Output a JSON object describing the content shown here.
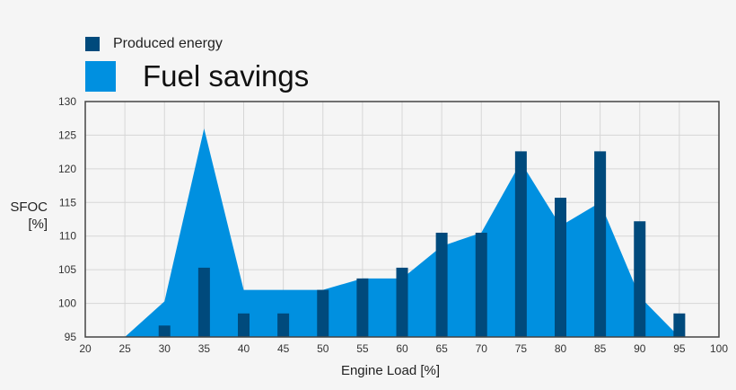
{
  "legend": {
    "produced_energy": {
      "label": "Produced energy",
      "color": "#004a7c"
    },
    "fuel_savings": {
      "label": "Fuel savings",
      "color": "#0090e0"
    }
  },
  "axes": {
    "ylabel_line1": "SFOC",
    "ylabel_line2": "[%]",
    "xlabel": "Engine Load [%]"
  },
  "chart_data": {
    "type": "bar",
    "title": "",
    "xlabel": "Engine Load [%]",
    "ylabel": "SFOC [%]",
    "xlim": [
      20,
      100
    ],
    "ylim": [
      95,
      130
    ],
    "x_ticks": [
      20,
      25,
      30,
      35,
      40,
      45,
      50,
      55,
      60,
      65,
      70,
      75,
      80,
      85,
      90,
      95,
      100
    ],
    "y_ticks": [
      95,
      100,
      105,
      110,
      115,
      120,
      125,
      130
    ],
    "grid": true,
    "legend_position": "top-left",
    "series": [
      {
        "name": "Produced energy",
        "type": "bar",
        "color": "#004a7c",
        "x": [
          30,
          35,
          40,
          45,
          50,
          55,
          60,
          65,
          70,
          75,
          80,
          85,
          90,
          95
        ],
        "values": [
          96.7,
          105.3,
          98.5,
          98.5,
          102.0,
          103.7,
          105.3,
          110.5,
          110.5,
          122.6,
          115.7,
          122.6,
          112.2,
          98.5
        ]
      },
      {
        "name": "Fuel savings",
        "type": "area",
        "color": "#0090e0",
        "x": [
          25,
          30,
          35,
          40,
          45,
          50,
          55,
          60,
          65,
          70,
          75,
          80,
          85,
          90,
          95
        ],
        "values": [
          95.0,
          100.3,
          126.0,
          102.0,
          102.0,
          102.0,
          103.7,
          103.7,
          108.5,
          110.5,
          121.0,
          111.5,
          115.0,
          101.0,
          95.0
        ]
      }
    ]
  }
}
